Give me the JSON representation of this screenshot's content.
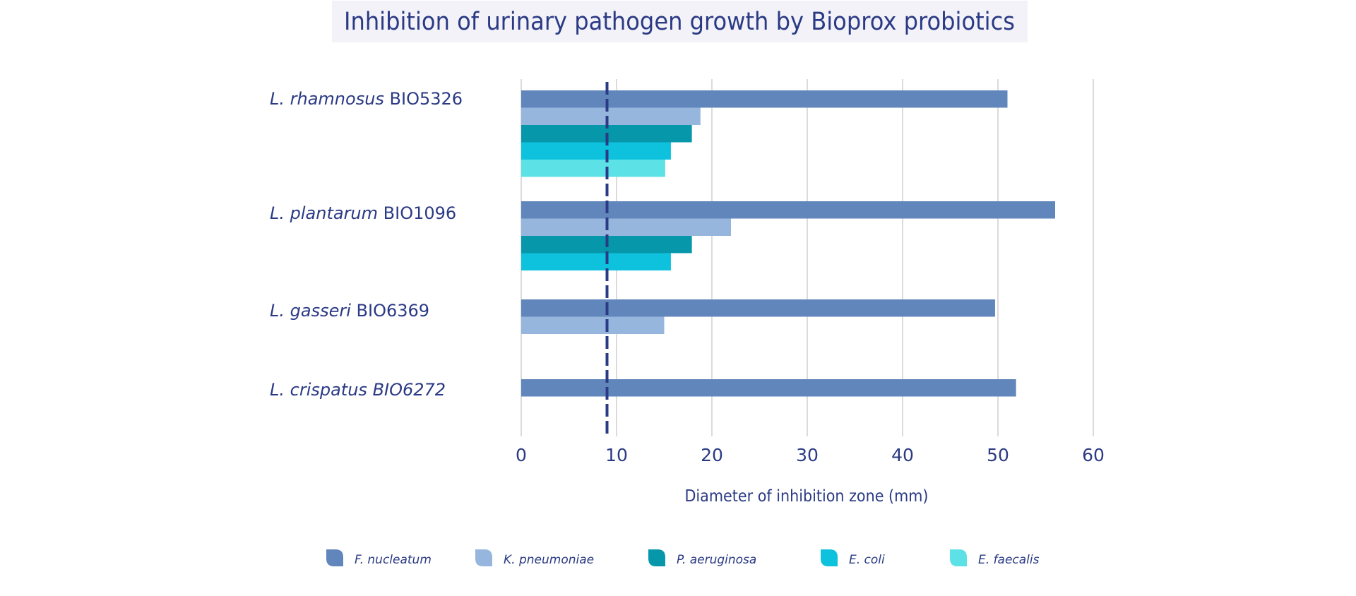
{
  "chart_data": {
    "type": "bar",
    "orientation": "horizontal",
    "title": "Inhibition of urinary pathogen growth by Bioprox probiotics",
    "xlabel": "Diameter of inhibition zone (mm)",
    "ylabel": "",
    "xlim": [
      0,
      60
    ],
    "xticks": [
      0,
      10,
      20,
      30,
      40,
      50,
      60
    ],
    "grid": true,
    "reference_line": {
      "value": 9,
      "style": "dashed",
      "color": "#2b3a84"
    },
    "legend_position": "bottom",
    "categories": [
      {
        "species": "L. rhamnosus",
        "strain": "BIO5326",
        "strain_italic": false
      },
      {
        "species": "L. plantarum",
        "strain": "BIO1096",
        "strain_italic": false
      },
      {
        "species": "L. gasseri",
        "strain": "BIO6369",
        "strain_italic": false
      },
      {
        "species": "L. crispatus",
        "strain": "BIO6272",
        "strain_italic": true
      }
    ],
    "series": [
      {
        "name": "F. nucleatum",
        "color": "#6186bc",
        "values": [
          51,
          56,
          49.7,
          51.9
        ]
      },
      {
        "name": "K. pneumoniae",
        "color": "#97b6dd",
        "values": [
          18.8,
          22,
          15,
          null
        ]
      },
      {
        "name": "P. aeruginosa",
        "color": "#0797aa",
        "values": [
          17.9,
          17.9,
          null,
          null
        ]
      },
      {
        "name": "E. coli",
        "color": "#0ec1dd",
        "values": [
          15.7,
          15.7,
          null,
          null
        ]
      },
      {
        "name": "E. faecalis",
        "color": "#5ce1e6",
        "values": [
          15.1,
          null,
          null,
          null
        ]
      }
    ]
  },
  "colors": {
    "text": "#2b3a84",
    "grid": "#cfcfcf",
    "title_background": "#f2f2f8"
  }
}
